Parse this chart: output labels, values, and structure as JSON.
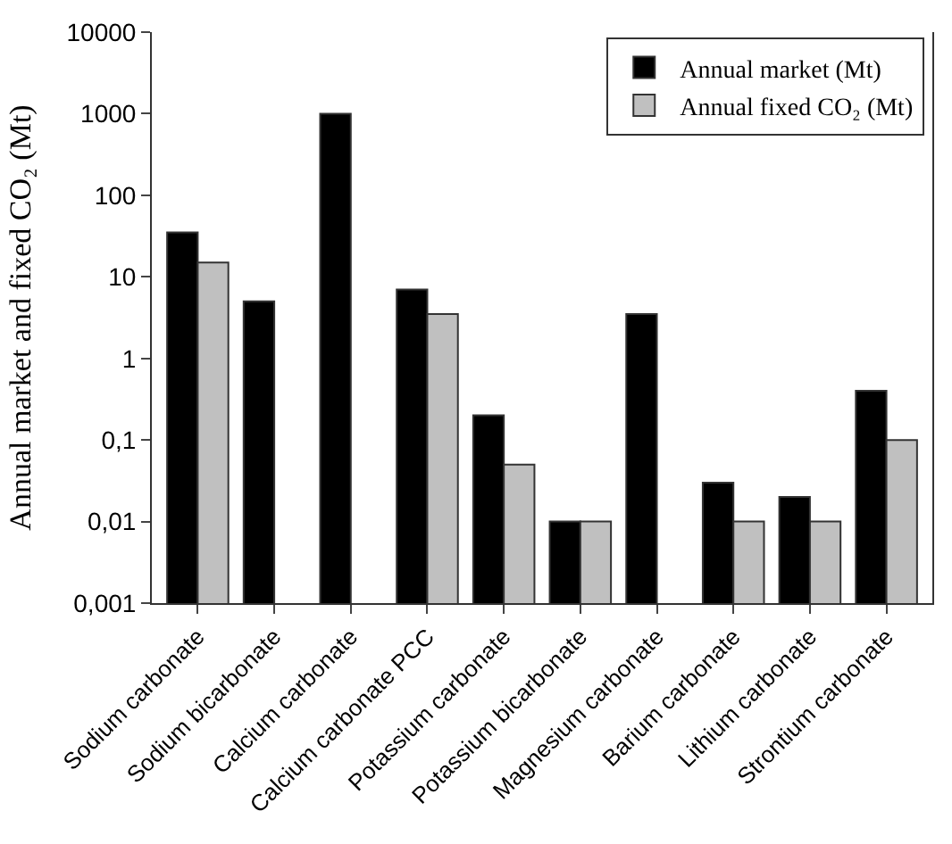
{
  "chart_data": {
    "type": "bar",
    "ylabel": "Annual market and fixed CO₂ (Mt)",
    "categories": [
      "Sodium carbonate",
      "Sodium bicarbonate",
      "Calcium carbonate",
      "Calcium carbonate PCC",
      "Potassium carbonate",
      "Potassium bicarbonate",
      "Magnesium carbonate",
      "Barium carbonate",
      "Lithium carbonate",
      "Strontium carbonate"
    ],
    "series": [
      {
        "name": "Annual market (Mt)",
        "color": "#000000",
        "values": [
          35,
          5,
          1000,
          7,
          0.2,
          0.01,
          3.5,
          0.03,
          0.02,
          0.4
        ]
      },
      {
        "name": "Annual fixed CO₂ (Mt)",
        "color": "#c0c0c0",
        "values": [
          15,
          null,
          null,
          3.5,
          0.05,
          0.01,
          null,
          0.01,
          0.01,
          0.1
        ]
      }
    ],
    "log": "y",
    "ylim": [
      0.001,
      10000
    ],
    "yticks": [
      {
        "value": 0.001,
        "label": "0,001"
      },
      {
        "value": 0.01,
        "label": "0,01"
      },
      {
        "value": 0.1,
        "label": "0,1"
      },
      1,
      10,
      100,
      1000,
      10000
    ],
    "legend": "top right"
  }
}
